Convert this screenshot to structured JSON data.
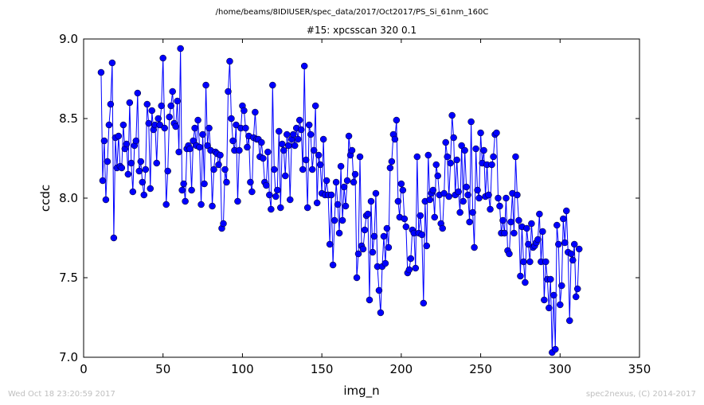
{
  "figure": {
    "suptitle": "/home/beams/8IDIUSER/spec_data/2017/Oct2017/PS_Si_61nm_160C",
    "footer_left": "Wed Oct 18 23:20:59 2017",
    "footer_right": "spec2nexus, (C) 2014-2017"
  },
  "colors": {
    "series": "#0000ff",
    "axes": "#000000",
    "footer": "#bfbfbf"
  },
  "chart_data": {
    "type": "line",
    "markers": "circle",
    "title": "#15: xpcsscan 320 0.1",
    "xlabel": "img_n",
    "ylabel": "ccdc",
    "xlim": [
      0,
      350
    ],
    "ylim": [
      7.0,
      9.0
    ],
    "xticks": [
      0,
      50,
      100,
      150,
      200,
      250,
      300,
      350
    ],
    "yticks": [
      7.0,
      7.5,
      8.0,
      8.5,
      9.0
    ],
    "xtick_labels": [
      "0",
      "50",
      "100",
      "150",
      "200",
      "250",
      "300",
      "350"
    ],
    "ytick_labels": [
      "7.0",
      "7.5",
      "8.0",
      "8.5",
      "9.0"
    ],
    "grid": false,
    "legend": "none",
    "series": [
      {
        "x_start": 11,
        "y": [
          8.79,
          8.11,
          8.36,
          7.99,
          8.23,
          8.46,
          8.59,
          8.85,
          7.75,
          8.38,
          8.19,
          8.39,
          8.2,
          8.19,
          8.46,
          8.31,
          8.34,
          8.15,
          8.6,
          8.22,
          8.04,
          8.33,
          8.36,
          8.66,
          8.17,
          8.23,
          8.1,
          8.02,
          8.18,
          8.59,
          8.47,
          8.06,
          8.55,
          8.43,
          8.46,
          8.22,
          8.5,
          8.46,
          8.58,
          8.88,
          8.44,
          7.96,
          8.17,
          8.51,
          8.58,
          8.67,
          8.47,
          8.45,
          8.61,
          8.29,
          8.94,
          8.05,
          8.09,
          7.98,
          8.31,
          8.33,
          8.31,
          8.05,
          8.36,
          8.44,
          8.33,
          8.49,
          8.32,
          7.96,
          8.4,
          8.09,
          8.71,
          8.33,
          8.44,
          8.3,
          7.95,
          8.18,
          8.29,
          8.28,
          8.21,
          8.27,
          7.81,
          7.84,
          8.18,
          8.1,
          8.67,
          8.86,
          8.5,
          8.36,
          8.3,
          8.46,
          7.98,
          8.3,
          8.44,
          8.58,
          8.55,
          8.44,
          8.32,
          8.39,
          8.1,
          8.04,
          8.38,
          8.54,
          8.37,
          8.37,
          8.26,
          8.35,
          8.25,
          8.1,
          8.08,
          8.29,
          8.02,
          7.93,
          8.71,
          8.18,
          8.01,
          8.05,
          8.42,
          7.94,
          8.34,
          8.3,
          8.14,
          8.4,
          8.33,
          7.99,
          8.37,
          8.4,
          8.33,
          8.44,
          8.37,
          8.49,
          8.43,
          8.18,
          8.83,
          8.24,
          7.94,
          8.46,
          8.4,
          8.18,
          8.3,
          8.58,
          7.97,
          8.27,
          8.21,
          8.03,
          8.37,
          8.02,
          8.11,
          8.02,
          7.71,
          8.02,
          7.58,
          7.86,
          8.1,
          7.96,
          7.78,
          8.2,
          7.86,
          8.07,
          7.95,
          8.11,
          8.39,
          8.27,
          8.3,
          8.1,
          8.15,
          7.5,
          7.65,
          8.26,
          7.7,
          7.68,
          7.8,
          7.89,
          7.9,
          7.36,
          7.98,
          7.66,
          7.76,
          8.03,
          7.57,
          7.42,
          7.28,
          7.57,
          7.76,
          7.59,
          7.81,
          7.69,
          8.19,
          8.23,
          8.4,
          8.37,
          8.49,
          7.98,
          7.88,
          8.09,
          8.05,
          7.87,
          7.82,
          7.53,
          7.55,
          7.62,
          7.8,
          7.78,
          7.56,
          8.26,
          7.78,
          7.89,
          7.77,
          7.34,
          7.98,
          7.7,
          8.27,
          7.99,
          8.03,
          8.05,
          7.88,
          8.21,
          8.14,
          8.02,
          7.84,
          7.81,
          8.03,
          8.35,
          8.26,
          8.01,
          8.22,
          8.52,
          8.38,
          8.02,
          8.24,
          8.04,
          7.91,
          8.33,
          7.98,
          8.3,
          8.07,
          8.02,
          7.85,
          8.48,
          7.91,
          7.69,
          8.31,
          8.05,
          8.0,
          8.41,
          8.22,
          8.3,
          8.01,
          8.21,
          8.02,
          7.93,
          8.21,
          8.26,
          8.4,
          8.41,
          8.0,
          7.95,
          7.78,
          7.86,
          7.78,
          8.0,
          7.67,
          7.65,
          7.85,
          8.03,
          7.78,
          8.26,
          8.02,
          7.86,
          7.51,
          7.82,
          7.6,
          7.47,
          7.81,
          7.71,
          7.6,
          7.84,
          7.69,
          7.7,
          7.72,
          7.74,
          7.9,
          7.6,
          7.79,
          7.36,
          7.6,
          7.49,
          7.31,
          7.49,
          7.03,
          7.39,
          7.05,
          7.83,
          7.71,
          7.33,
          7.45,
          7.87,
          7.72,
          7.92,
          7.66,
          7.23,
          7.65,
          7.61,
          7.71,
          7.38,
          7.43,
          7.68
        ]
      }
    ]
  }
}
